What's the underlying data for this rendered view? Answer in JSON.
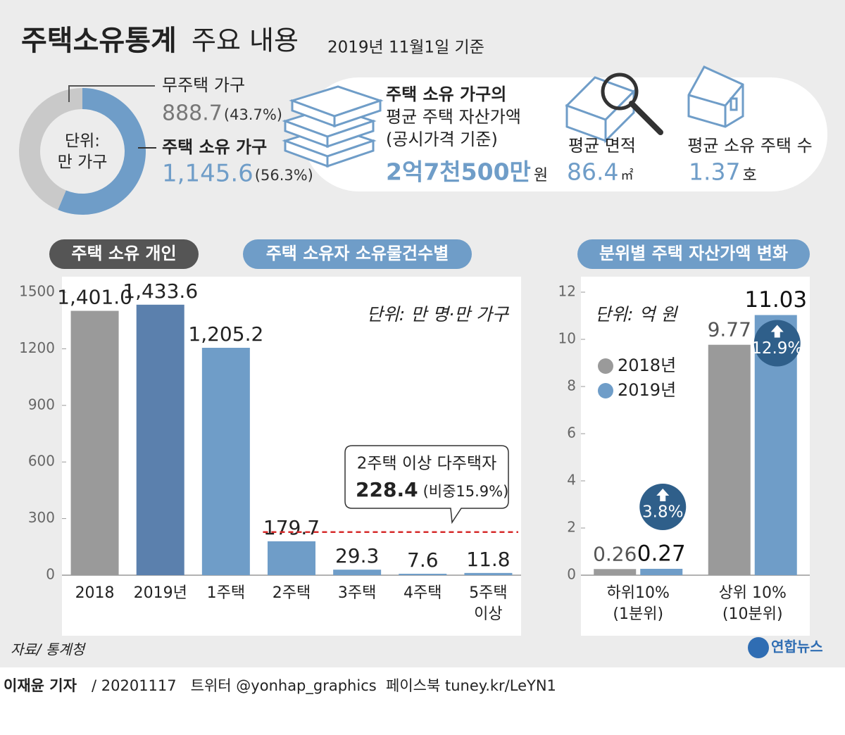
{
  "title": "주택소유통계",
  "title_rest": "주요 내용",
  "date": "2019년 11월1일 기준",
  "summary": {
    "asset": {
      "lines": [
        "주택 소유 가구의",
        "평균 주택 자산가액",
        "(공시가격 기준)"
      ],
      "value": "2억7천500만",
      "unit": "원"
    },
    "area": {
      "label": "평균 면적",
      "value": "86.4",
      "unit": "㎡"
    },
    "count": {
      "label": "평균 소유 주택 수",
      "value": "1.37",
      "unit": "호"
    }
  },
  "chart_data": [
    {
      "type": "donut",
      "center_label": [
        "단위:",
        "만 가구"
      ],
      "categories": [
        "무주택 가구",
        "주택 소유 가구"
      ],
      "values": [
        888.7,
        1145.6
      ],
      "value_labels": [
        "888.7",
        "1,145.6"
      ],
      "shares": [
        43.7,
        56.3
      ],
      "share_labels": [
        "(43.7%)",
        "(56.3%)"
      ],
      "colors": [
        "#c9c9c9",
        "#6f9dc8"
      ]
    },
    {
      "type": "bar",
      "section_titles": [
        "주택 소유 개인",
        "주택 소유자 소유물건수별"
      ],
      "unit": "단위: 만 명·만 가구",
      "categories": [
        "2018",
        "2019년",
        "1주택",
        "2주택",
        "3주택",
        "4주택",
        "5주택 이상"
      ],
      "values": [
        1401.0,
        1433.6,
        1205.2,
        179.7,
        29.3,
        7.6,
        11.8
      ],
      "value_labels": [
        "1,401.0",
        "1,433.6",
        "1,205.2",
        "179.7",
        "29.3",
        "7.6",
        "11.8"
      ],
      "colors": [
        "#9a9a9a",
        "#5b80ad",
        "#6f9dc8",
        "#6f9dc8",
        "#6f9dc8",
        "#6f9dc8",
        "#6f9dc8"
      ],
      "ylim": [
        0,
        1500
      ],
      "yticks": [
        0,
        300,
        600,
        900,
        1200,
        1500
      ],
      "annotation": {
        "title": "2주택 이상 다주택자",
        "value": 228.4,
        "value_label": "228.4",
        "share_label": "(비중15.9%)",
        "color": "#d62b2b"
      }
    },
    {
      "type": "grouped_bar",
      "section_title": "분위별 주택 자산가액 변화",
      "unit": "단위: 억 원",
      "categories": [
        "하위10% (1분위)",
        "상위 10% (10분위)"
      ],
      "series": [
        {
          "name": "2018년",
          "color": "#9a9a9a",
          "values": [
            0.26,
            9.77
          ]
        },
        {
          "name": "2019년",
          "color": "#6f9dc8",
          "values": [
            0.27,
            11.03
          ]
        }
      ],
      "changes": [
        3.8,
        12.9
      ],
      "change_labels": [
        "3.8%",
        "12.9%"
      ],
      "change_color": "#2f5f8a",
      "ylim": [
        0,
        12
      ],
      "yticks": [
        0,
        2,
        4,
        6,
        8,
        10,
        12
      ],
      "legend": "upper-left"
    }
  ],
  "source": "자료/ 통계청",
  "logo": "연합뉴스",
  "footer": {
    "reporter": "이재윤 기자",
    "rest": "/ 20201117   트위터 @yonhap_graphics  페이스북 tuney.kr/LeYN1"
  }
}
